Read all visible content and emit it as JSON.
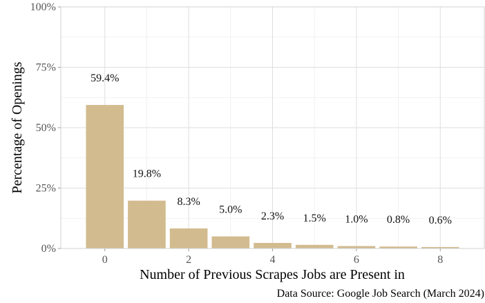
{
  "chart_data": {
    "type": "bar",
    "categories": [
      "0",
      "1",
      "2",
      "3",
      "4",
      "5",
      "6",
      "7",
      "8"
    ],
    "values": [
      59.4,
      19.8,
      8.3,
      5.0,
      2.3,
      1.5,
      1.0,
      0.8,
      0.6
    ],
    "data_labels": [
      "59.4%",
      "19.8%",
      "8.3%",
      "5.0%",
      "2.3%",
      "1.5%",
      "1.0%",
      "0.8%",
      "0.6%"
    ],
    "x_ticks": [
      "0",
      "2",
      "4",
      "6",
      "8"
    ],
    "y_ticks": [
      "0%",
      "25%",
      "50%",
      "75%",
      "100%"
    ],
    "xlabel": "Number of Previous Scrapes Jobs are Present in",
    "ylabel": "Percentage of Openings",
    "ylim": [
      0,
      100
    ],
    "grid": true,
    "bar_color": "#D2BB8F",
    "caption": "Data Source: Google Job Search (March 2024)"
  }
}
